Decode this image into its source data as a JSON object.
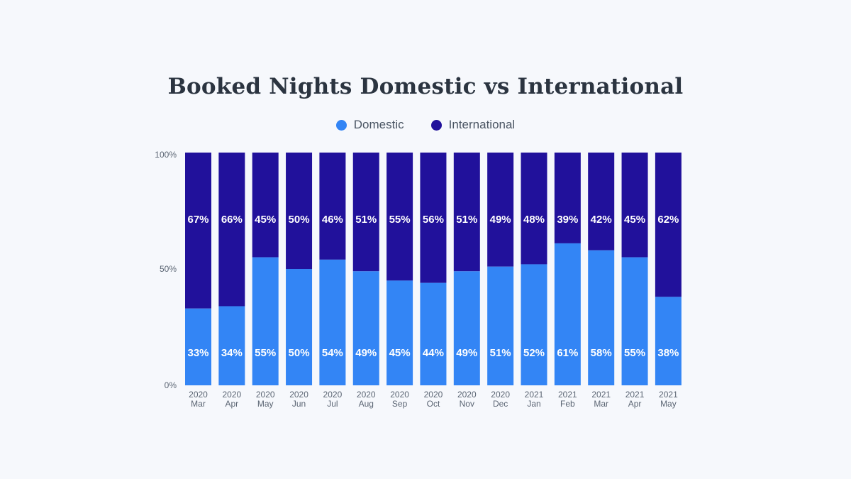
{
  "chart_data": {
    "type": "bar",
    "stacked": true,
    "title": "Booked Nights Domestic vs International",
    "legend": {
      "placement": "top-center",
      "items": [
        {
          "name": "Domestic",
          "color": "#3385f5"
        },
        {
          "name": "International",
          "color": "#21119b"
        }
      ]
    },
    "categories": [
      {
        "year": "2020",
        "month": "Mar"
      },
      {
        "year": "2020",
        "month": "Apr"
      },
      {
        "year": "2020",
        "month": "May"
      },
      {
        "year": "2020",
        "month": "Jun"
      },
      {
        "year": "2020",
        "month": "Jul"
      },
      {
        "year": "2020",
        "month": "Aug"
      },
      {
        "year": "2020",
        "month": "Sep"
      },
      {
        "year": "2020",
        "month": "Oct"
      },
      {
        "year": "2020",
        "month": "Nov"
      },
      {
        "year": "2020",
        "month": "Dec"
      },
      {
        "year": "2021",
        "month": "Jan"
      },
      {
        "year": "2021",
        "month": "Feb"
      },
      {
        "year": "2021",
        "month": "Mar"
      },
      {
        "year": "2021",
        "month": "Apr"
      },
      {
        "year": "2021",
        "month": "May"
      }
    ],
    "series": [
      {
        "name": "Domestic",
        "color": "#3385f5",
        "values": [
          33,
          34,
          55,
          50,
          54,
          49,
          45,
          44,
          49,
          51,
          52,
          61,
          58,
          55,
          38
        ]
      },
      {
        "name": "International",
        "color": "#21119b",
        "values": [
          67,
          66,
          45,
          50,
          46,
          51,
          55,
          56,
          51,
          49,
          48,
          39,
          42,
          45,
          62
        ]
      }
    ],
    "value_suffix": "%",
    "y_ticks": [
      "0%",
      "50%",
      "100%"
    ],
    "ylim": [
      0,
      100
    ],
    "grid": false
  }
}
